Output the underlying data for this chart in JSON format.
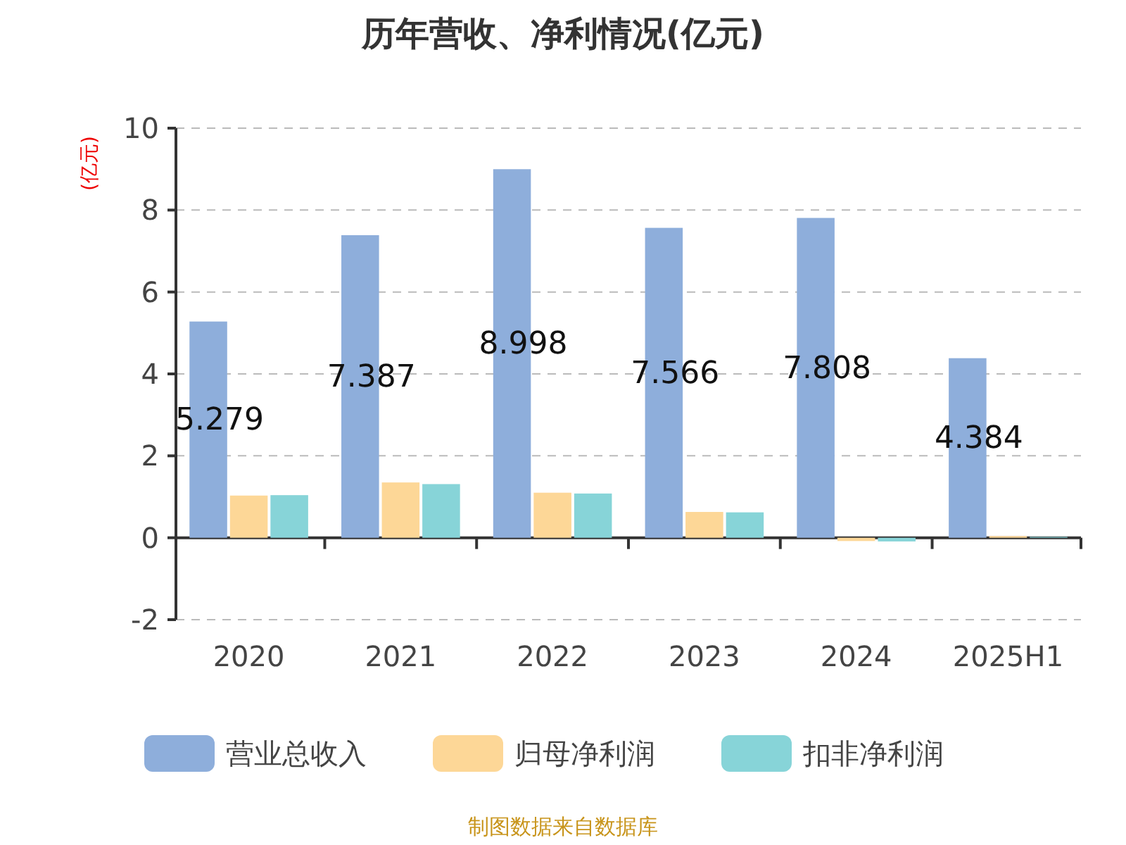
{
  "chart_data": {
    "type": "bar",
    "title": "历年营收、净利情况(亿元)",
    "ylabel": "(亿元)",
    "categories": [
      "2020",
      "2021",
      "2022",
      "2023",
      "2024",
      "2025H1"
    ],
    "series": [
      {
        "name": "营业总收入",
        "color": "#8eaedb",
        "values": [
          5.279,
          7.387,
          8.998,
          7.566,
          7.808,
          4.384
        ],
        "value_labels": [
          "5.279",
          "7.387",
          "8.998",
          "7.566",
          "7.808",
          "4.384"
        ]
      },
      {
        "name": "归母净利润",
        "color": "#fdd797",
        "values": [
          1.03,
          1.35,
          1.1,
          0.63,
          -0.08,
          0.04
        ]
      },
      {
        "name": "扣非净利润",
        "color": "#87d4d8",
        "values": [
          1.04,
          1.31,
          1.08,
          0.62,
          -0.09,
          0.02
        ]
      }
    ],
    "ylim": [
      -2,
      10
    ],
    "yticks": [
      -2,
      0,
      2,
      4,
      6,
      8,
      10
    ],
    "grid": "y",
    "legend": "bottom",
    "annotations": [
      "制图数据来自数据库"
    ]
  }
}
